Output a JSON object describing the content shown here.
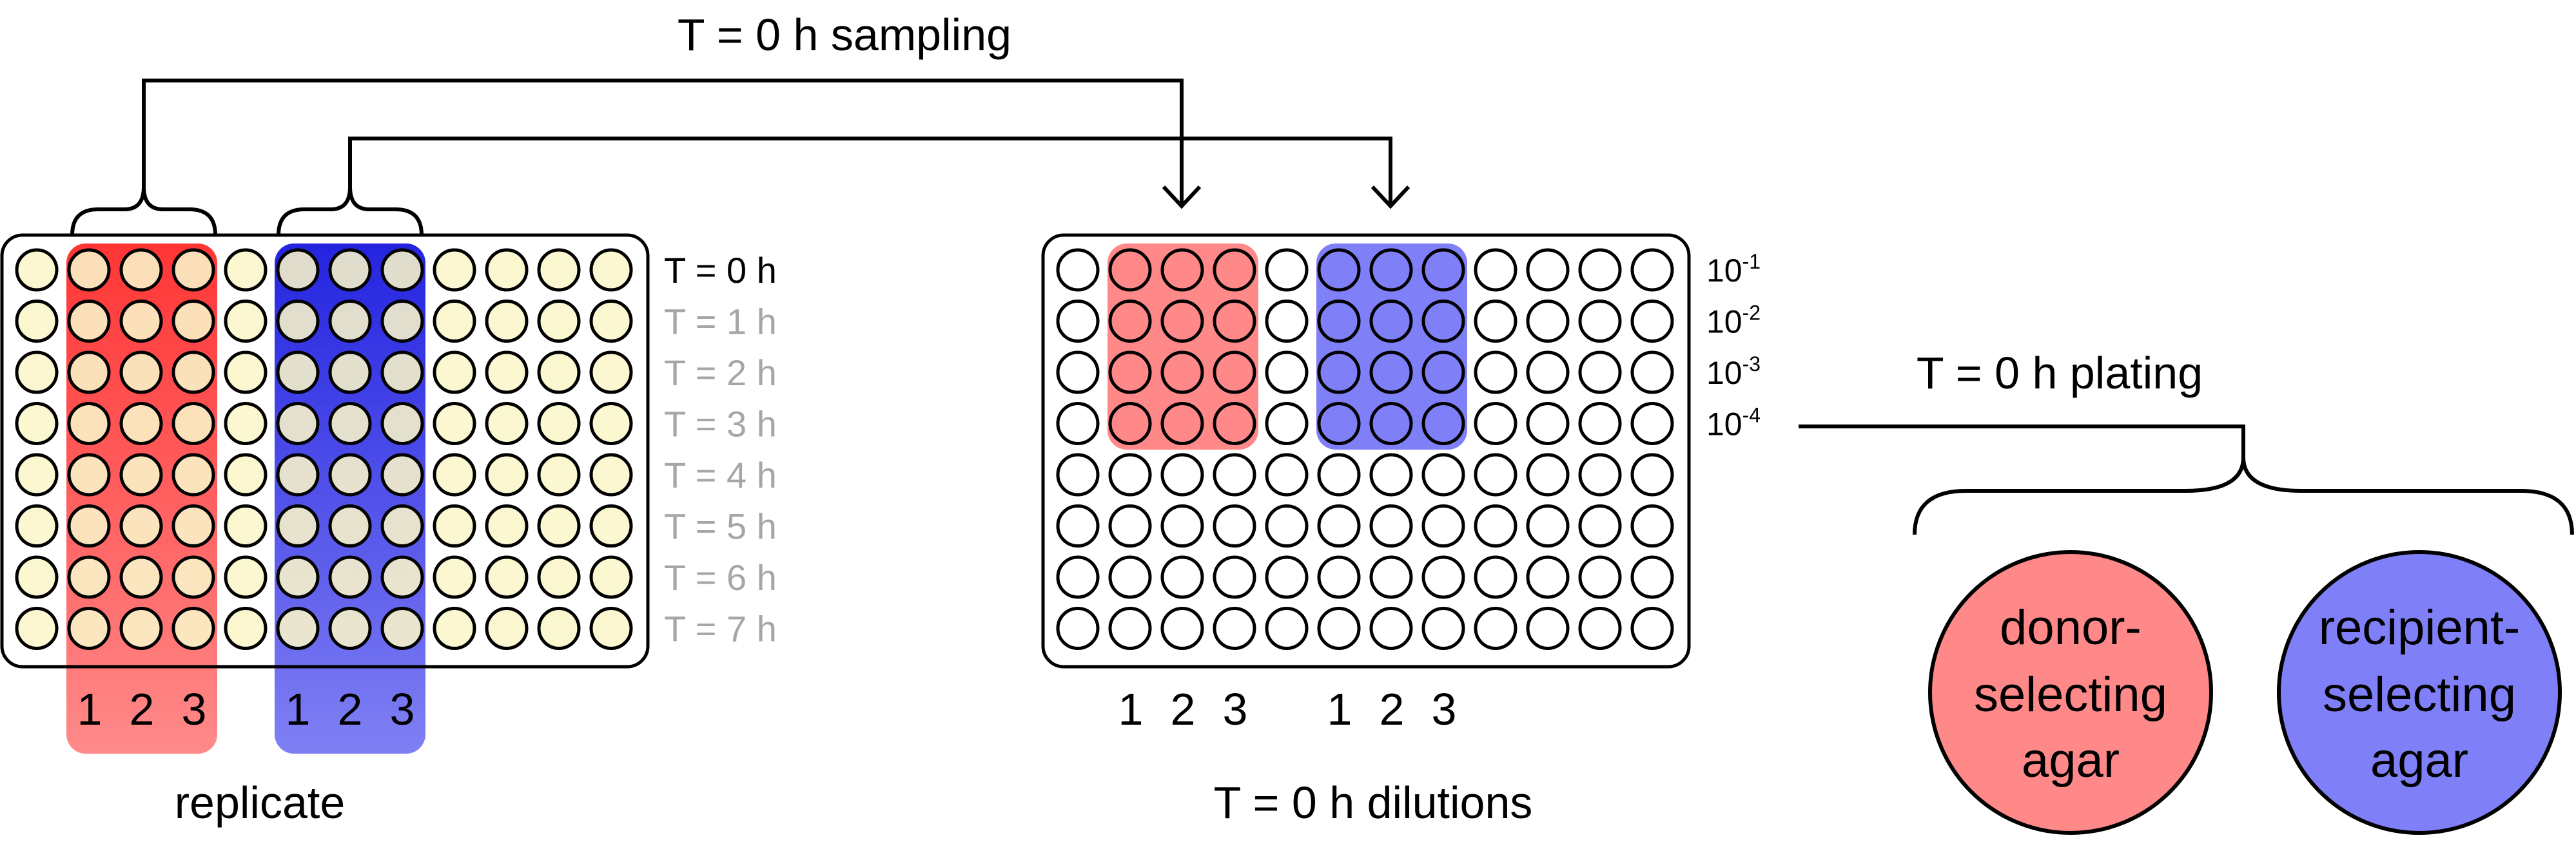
{
  "labels": {
    "sampling": "T = 0 h sampling",
    "plating": "T = 0 h plating",
    "replicate": "replicate",
    "dilutions": "T = 0 h dilutions"
  },
  "time_labels": [
    "T = 0 h",
    "T = 1 h",
    "T = 2 h",
    "T = 3 h",
    "T = 4 h",
    "T = 5 h",
    "T = 6 h",
    "T = 7 h"
  ],
  "dilution_labels": [
    {
      "base": "10",
      "exp": "-1"
    },
    {
      "base": "10",
      "exp": "-2"
    },
    {
      "base": "10",
      "exp": "-3"
    },
    {
      "base": "10",
      "exp": "-4"
    }
  ],
  "replicate_numbers": [
    "1",
    "2",
    "3"
  ],
  "agar": {
    "donor": [
      "donor-",
      "selecting",
      "agar"
    ],
    "recipient": [
      "recipient-",
      "selecting",
      "agar"
    ]
  },
  "colors": {
    "donor": "#ff8888",
    "donor_strong": "#ff3b3b",
    "recipient": "#7f7ff7",
    "recipient_strong": "#2a2ae6",
    "well_fill": "#fbf6c9",
    "time_active": "#000000",
    "time_inactive": "#a6a6a6"
  }
}
